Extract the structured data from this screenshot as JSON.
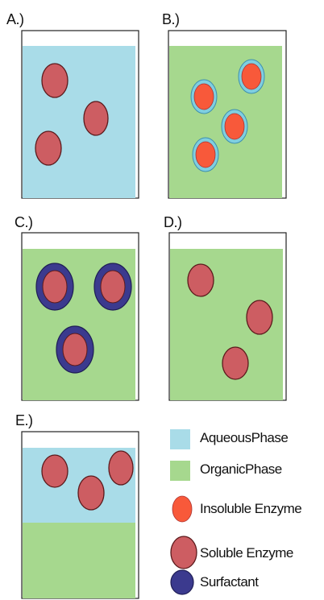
{
  "panels": [
    {
      "label": "A.)",
      "type": "aqueous"
    },
    {
      "label": "B.)",
      "type": "organic-insoluble"
    },
    {
      "label": "C.)",
      "type": "organic-surfactant"
    },
    {
      "label": "D.)",
      "type": "organic-soluble"
    },
    {
      "label": "E.)",
      "type": "biphasic"
    }
  ],
  "legend": {
    "aqueous": "AqueousPhase",
    "organic": "OrganicPhase",
    "insoluble": "Insoluble Enzyme",
    "soluble": "Soluble Enzyme",
    "surfactant": "Surfactant"
  },
  "colors": {
    "aqueous": "#a9dce8",
    "organic": "#a6d88e",
    "soluble_fill": "#cd5d62",
    "soluble_stroke": "#5c1a1c",
    "insoluble_fill": "#f8593a",
    "insoluble_halo": "#7fcfe0",
    "surfactant": "#3b3a8e"
  }
}
